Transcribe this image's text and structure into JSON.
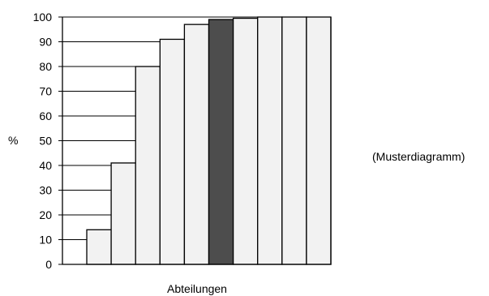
{
  "chart_data": {
    "type": "bar",
    "title": "",
    "xlabel": "Abteilungen",
    "ylabel": "%",
    "ylim": [
      0,
      100
    ],
    "yticks": [
      0,
      10,
      20,
      30,
      40,
      50,
      60,
      70,
      80,
      90,
      100
    ],
    "grid": "horizontal",
    "values": [
      14,
      41,
      80,
      91,
      97,
      99,
      99.5,
      100,
      100,
      100
    ],
    "highlight_index": 5,
    "colors": {
      "bar_fill": "#f2f2f2",
      "bar_highlight": "#4d4d4d",
      "bar_stroke": "#000000",
      "grid": "#000000"
    },
    "annotation": "(Musterdiagramm)"
  }
}
